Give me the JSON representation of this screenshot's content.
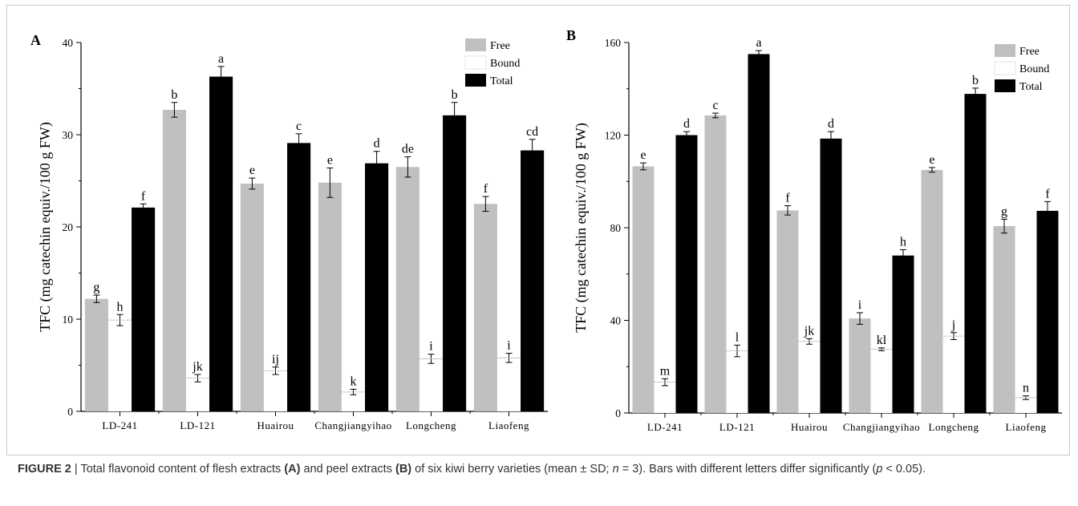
{
  "chart_data": [
    {
      "panel": "A",
      "type": "bar",
      "ylabel": "TFC (mg catechin equiv./100 g FW)",
      "xlabel": "",
      "ylim": [
        0,
        40
      ],
      "yticks": [
        0,
        10,
        20,
        30,
        40
      ],
      "legend_position": "top-right",
      "categories": [
        "LD-241",
        "LD-121",
        "Huairou",
        "Changjiangyihao",
        "Longcheng",
        "Liaofeng"
      ],
      "series": [
        {
          "name": "Free",
          "color": "#c0c0c0",
          "values": [
            12.2,
            32.7,
            24.7,
            24.8,
            26.5,
            22.5
          ],
          "sd": [
            0.4,
            0.8,
            0.6,
            1.6,
            1.1,
            0.8
          ],
          "letters": [
            "g",
            "b",
            "e",
            "e",
            "de",
            "f"
          ]
        },
        {
          "name": "Bound",
          "color": "#ffffff",
          "values": [
            9.9,
            3.6,
            4.4,
            2.1,
            5.7,
            5.8
          ],
          "sd": [
            0.6,
            0.4,
            0.4,
            0.3,
            0.5,
            0.5
          ],
          "letters": [
            "h",
            "jk",
            "ij",
            "k",
            "i",
            "i"
          ]
        },
        {
          "name": "Total",
          "color": "#000000",
          "values": [
            22.1,
            36.3,
            29.1,
            26.9,
            32.1,
            28.3
          ],
          "sd": [
            0.4,
            1.1,
            1.0,
            1.3,
            1.4,
            1.2
          ],
          "letters": [
            "f",
            "a",
            "c",
            "d",
            "b",
            "cd"
          ]
        }
      ]
    },
    {
      "panel": "B",
      "type": "bar",
      "ylabel": "TFC (mg catechin equiv./100 g FW)",
      "xlabel": "",
      "ylim": [
        0,
        160
      ],
      "yticks": [
        0,
        40,
        80,
        120,
        160
      ],
      "legend_position": "top-right",
      "categories": [
        "LD-241",
        "LD-121",
        "Huairou",
        "Changjiangyihao",
        "Longcheng",
        "Liaofeng"
      ],
      "series": [
        {
          "name": "Free",
          "color": "#c0c0c0",
          "values": [
            106.5,
            128.5,
            87.5,
            40.8,
            105.0,
            80.7
          ],
          "sd": [
            1.5,
            1.0,
            2.0,
            2.5,
            1.0,
            3.0
          ],
          "letters": [
            "e",
            "c",
            "f",
            "i",
            "e",
            "g"
          ]
        },
        {
          "name": "Bound",
          "color": "#ffffff",
          "values": [
            13.3,
            26.8,
            30.9,
            27.5,
            33.2,
            6.6
          ],
          "sd": [
            1.5,
            2.5,
            1.2,
            0.6,
            1.5,
            0.8
          ],
          "letters": [
            "m",
            "l",
            "jk",
            "kl",
            "j",
            "n"
          ]
        },
        {
          "name": "Total",
          "color": "#000000",
          "values": [
            120.0,
            155.0,
            118.5,
            68.0,
            137.8,
            87.3
          ],
          "sd": [
            1.5,
            1.5,
            3.0,
            2.5,
            2.5,
            4.0
          ],
          "letters": [
            "d",
            "a",
            "d",
            "h",
            "b",
            "f"
          ]
        }
      ]
    }
  ],
  "caption": {
    "fig_label": "FIGURE 2",
    "sep": " | ",
    "part1": "Total flavonoid content of flesh extracts ",
    "a_ref": "(A)",
    "part2": " and peel extracts ",
    "b_ref": "(B)",
    "part3": " of six kiwi berry varieties (mean ± SD; ",
    "n_sym": "n",
    "part4": " = 3). Bars with different letters differ significantly (",
    "p_sym": "p",
    "part5": " < 0.05)."
  }
}
